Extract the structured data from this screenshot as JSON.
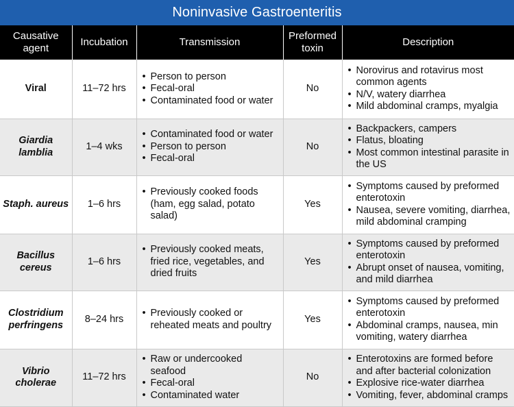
{
  "title": "Noninvasive Gastroenteritis",
  "headers": [
    "Causative agent",
    "Incubation",
    "Transmission",
    "Preformed toxin",
    "Description"
  ],
  "rows": [
    {
      "agent": "Viral",
      "italic": false,
      "incubation": "11–72 hrs",
      "transmission": [
        "Person to person",
        "Fecal-oral",
        "Contaminated food or water"
      ],
      "toxin": "No",
      "description": [
        "Norovirus and rotavirus most common agents",
        "N/V, watery diarrhea",
        "Mild abdominal cramps, myalgia"
      ]
    },
    {
      "agent": "Giardia lamblia",
      "italic": true,
      "incubation": "1–4 wks",
      "transmission": [
        "Contaminated food or water",
        "Person to person",
        "Fecal-oral"
      ],
      "toxin": "No",
      "description": [
        "Backpackers, campers",
        "Flatus, bloating",
        "Most common intestinal parasite in the US"
      ]
    },
    {
      "agent": "Staph. aureus",
      "italic": true,
      "incubation": "1–6 hrs",
      "transmission": [
        "Previously cooked foods (ham, egg salad, potato salad)"
      ],
      "toxin": "Yes",
      "description": [
        "Symptoms caused by preformed enterotoxin",
        "Nausea, severe vomiting, diarrhea, mild abdominal cramping"
      ]
    },
    {
      "agent": "Bacillus cereus",
      "italic": true,
      "incubation": "1–6 hrs",
      "transmission": [
        "Previously cooked meats, fried rice, vegetables, and dried fruits"
      ],
      "toxin": "Yes",
      "description": [
        "Symptoms caused by preformed enterotoxin",
        "Abrupt onset of nausea, vomiting, and mild diarrhea"
      ]
    },
    {
      "agent": "Clostridium perfringens",
      "italic": true,
      "incubation": "8–24 hrs",
      "transmission": [
        "Previously cooked or reheated meats and poultry"
      ],
      "toxin": "Yes",
      "description": [
        "Symptoms caused by preformed enterotoxin",
        "Abdominal cramps, nausea, min vomiting, watery diarrhea"
      ]
    },
    {
      "agent": "Vibrio cholerae",
      "italic": true,
      "incubation": "11–72 hrs",
      "transmission": [
        "Raw or undercooked seafood",
        "Fecal-oral",
        "Contaminated water"
      ],
      "toxin": "No",
      "description": [
        "Enterotoxins are formed before and after bacterial colonization",
        "Explosive rice-water diarrhea",
        "Vomiting, fever, abdominal cramps"
      ]
    }
  ],
  "colors": {
    "title_bg": "#1f5fae",
    "header_bg": "#000000",
    "alt_row_bg": "#eaeaea"
  }
}
